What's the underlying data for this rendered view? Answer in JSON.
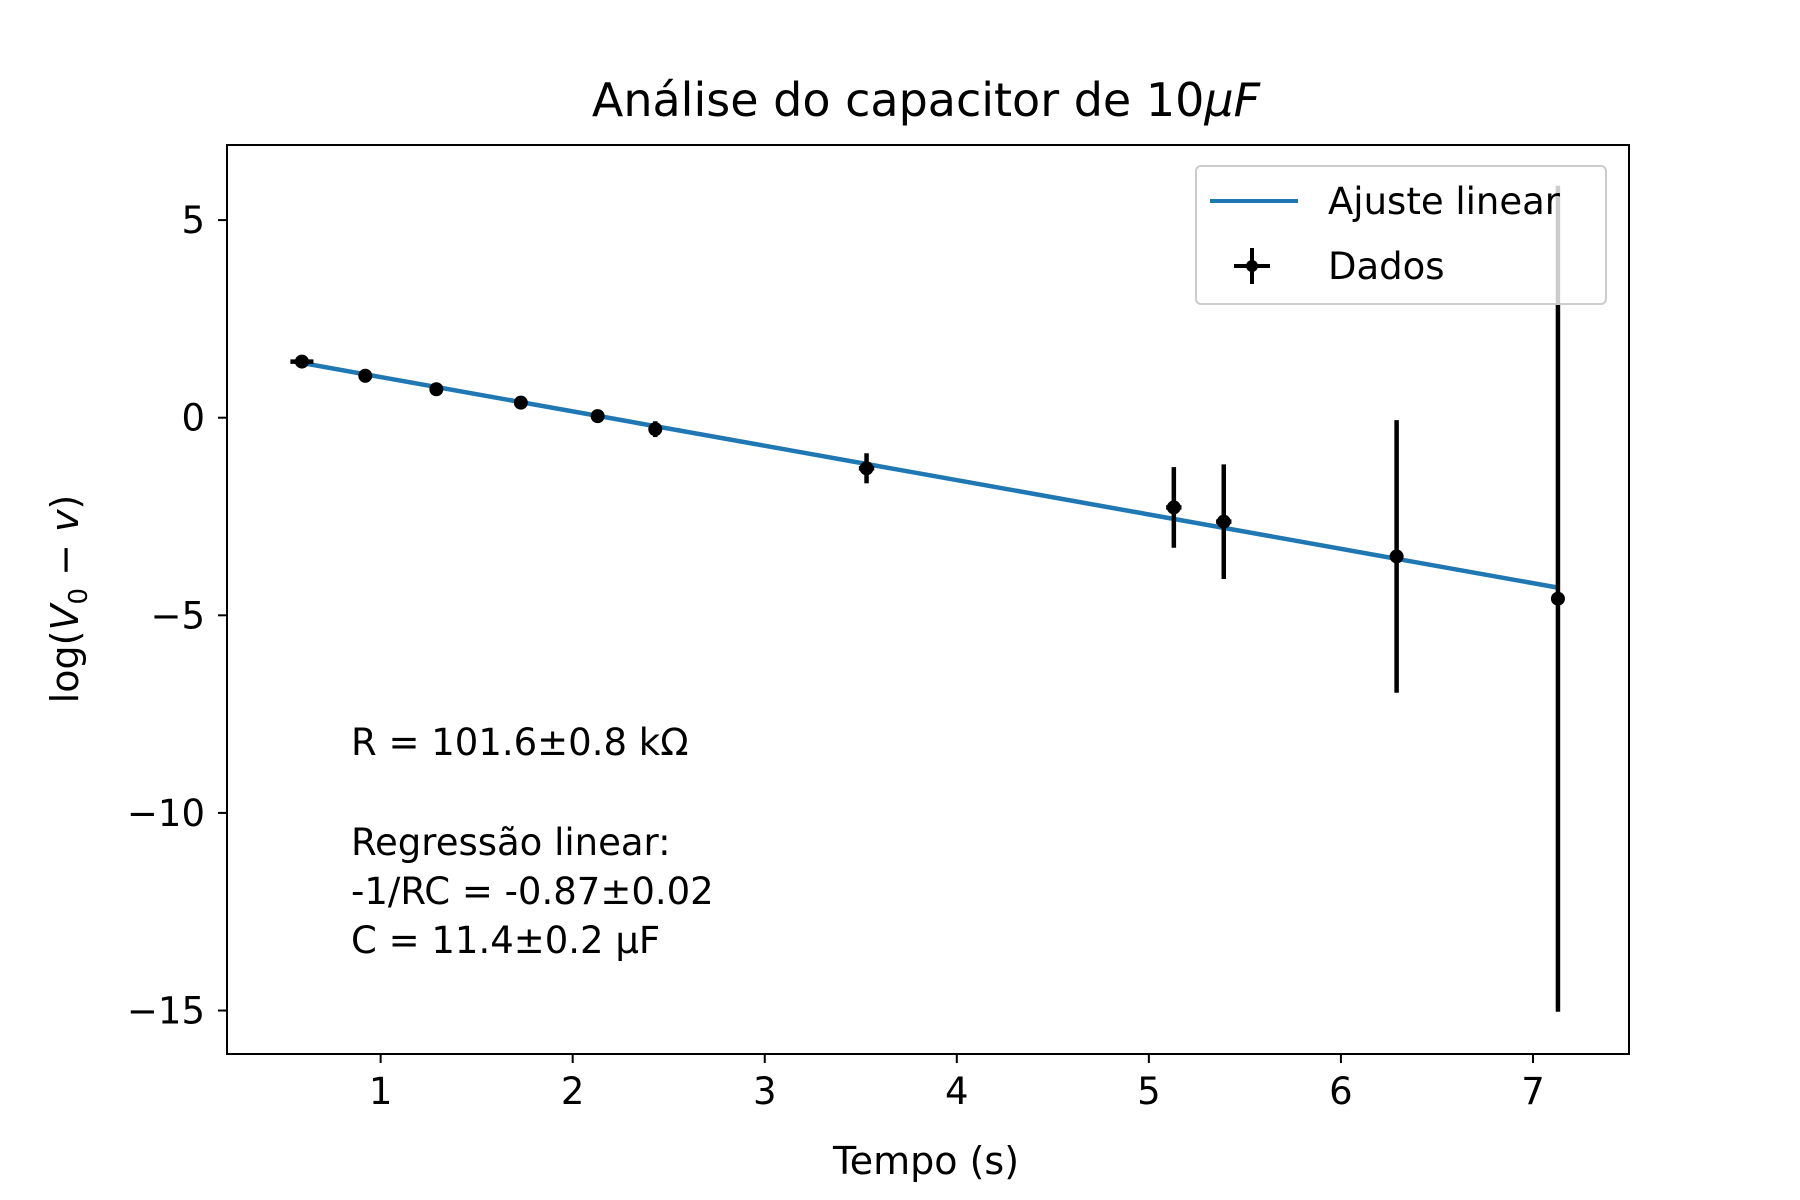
{
  "chart_data": {
    "type": "scatter",
    "title": "Análise do capacitor de 10μF",
    "xlabel": "Tempo (s)",
    "ylabel": "log(V₀ − v)",
    "xlim": [
      0.2,
      7.5
    ],
    "ylim": [
      -16.1,
      6.9
    ],
    "xticks": [
      1,
      2,
      3,
      4,
      5,
      6,
      7
    ],
    "xtick_labels": [
      "1",
      "2",
      "3",
      "4",
      "5",
      "6",
      "7"
    ],
    "yticks": [
      5,
      0,
      -5,
      -10,
      -15
    ],
    "ytick_labels": [
      "5",
      "0",
      "−5",
      "−10",
      "−15"
    ],
    "grid": false,
    "legend": {
      "placement": "top-right",
      "entries": [
        "Ajuste linear",
        "Dados"
      ]
    },
    "series": [
      {
        "name": "Ajuste linear",
        "kind": "line",
        "color": "#1f77b4",
        "x": [
          0.55,
          7.13
        ],
        "y": [
          1.42,
          -4.3
        ]
      },
      {
        "name": "Dados",
        "kind": "errorbar",
        "color": "#000000",
        "x": [
          0.59,
          0.92,
          1.29,
          1.73,
          2.13,
          2.43,
          3.53,
          5.13,
          5.39,
          6.29,
          7.13
        ],
        "y": [
          1.42,
          1.06,
          0.72,
          0.38,
          0.04,
          -0.29,
          -1.28,
          -2.27,
          -2.63,
          -3.51,
          -4.58
        ],
        "yerr": [
          0.05,
          0.07,
          0.1,
          0.12,
          0.15,
          0.2,
          0.38,
          1.02,
          1.45,
          3.45,
          10.45
        ],
        "xerr": [
          0.06,
          0.03,
          0.03,
          0.03,
          0.03,
          0.03,
          0.04,
          0.04,
          0.04,
          0.02,
          0.02
        ]
      }
    ],
    "annotations": [
      "R = 101.6±0.8  kΩ",
      "Regressão linear:",
      "-1/RC = -0.87±0.02",
      "C = 11.4±0.2  μF"
    ]
  }
}
